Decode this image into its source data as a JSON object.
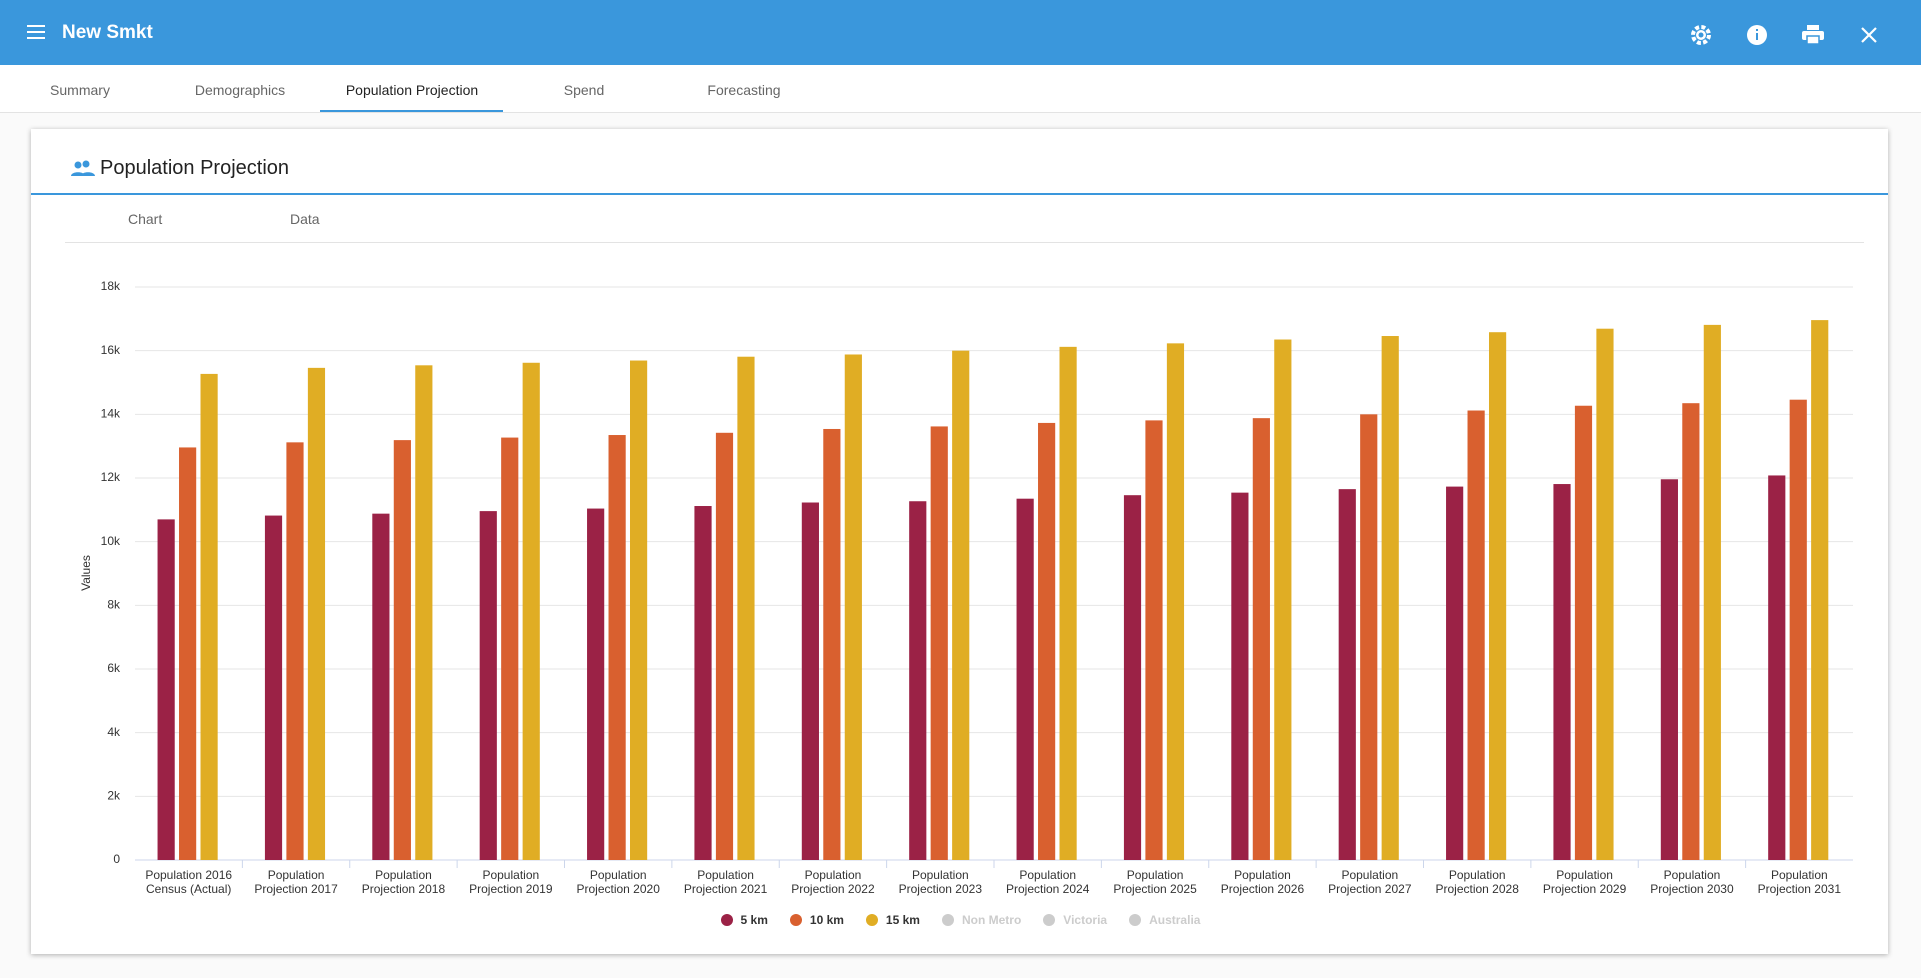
{
  "app": {
    "title": "New Smkt",
    "tabs": [
      "Summary",
      "Demographics",
      "Population Projection",
      "Spend",
      "Forecasting"
    ]
  },
  "card": {
    "title": "Population Projection",
    "subtabs": [
      "Chart",
      "Data"
    ]
  },
  "chart_data": {
    "type": "bar",
    "ylabel": "Values",
    "categories": [
      "Population 2016 Census (Actual)",
      "Population Projection 2017",
      "Population Projection 2018",
      "Population Projection 2019",
      "Population Projection 2020",
      "Population Projection 2021",
      "Population Projection 2022",
      "Population Projection 2023",
      "Population Projection 2024",
      "Population Projection 2025",
      "Population Projection 2026",
      "Population Projection 2027",
      "Population Projection 2028",
      "Population Projection 2029",
      "Population Projection 2030",
      "Population Projection 2031"
    ],
    "series": [
      {
        "name": "5 km",
        "color": "#9b2246",
        "values": [
          10700,
          10820,
          10880,
          10960,
          11040,
          11120,
          11230,
          11270,
          11350,
          11460,
          11540,
          11650,
          11730,
          11810,
          11960,
          12080
        ]
      },
      {
        "name": "10 km",
        "color": "#d9602f",
        "values": [
          12960,
          13120,
          13190,
          13270,
          13350,
          13420,
          13540,
          13620,
          13730,
          13810,
          13880,
          14000,
          14120,
          14270,
          14350,
          14460
        ]
      },
      {
        "name": "15 km",
        "color": "#e0ad24",
        "values": [
          15270,
          15460,
          15540,
          15620,
          15690,
          15810,
          15880,
          16000,
          16120,
          16230,
          16350,
          16460,
          16580,
          16690,
          16810,
          16960
        ]
      }
    ],
    "hidden_series": [
      "Non Metro",
      "Victoria",
      "Australia"
    ],
    "ylim": [
      0,
      18000
    ],
    "yticks": [
      0,
      {
        "value": 2000,
        "label": "2k"
      },
      {
        "value": 4000,
        "label": "4k"
      },
      {
        "value": 6000,
        "label": "6k"
      },
      {
        "value": 8000,
        "label": "8k"
      },
      {
        "value": 10000,
        "label": "10k"
      },
      {
        "value": 12000,
        "label": "12k"
      },
      {
        "value": 14000,
        "label": "14k"
      },
      {
        "value": 16000,
        "label": "16k"
      },
      {
        "value": 18000,
        "label": "18k"
      }
    ],
    "grid": true
  }
}
